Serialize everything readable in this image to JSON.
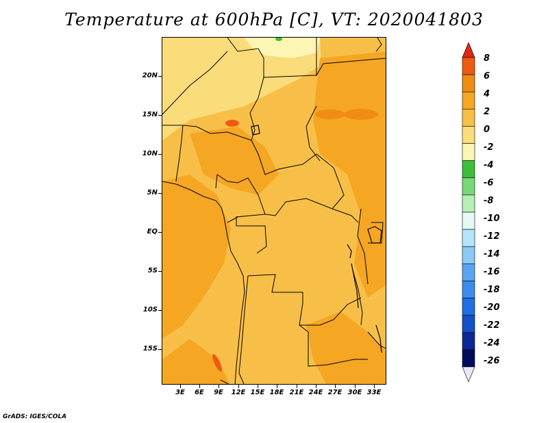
{
  "title": "Temperature at 600hPa [C], VT: 2020041803",
  "credit": "GrADS: IGES/COLA",
  "lat_labels": [
    "20N",
    "15N",
    "10N",
    "5N",
    "EQ",
    "5S",
    "10S",
    "15S"
  ],
  "lon_labels": [
    "3E",
    "6E",
    "9E",
    "12E",
    "15E",
    "18E",
    "21E",
    "24E",
    "27E",
    "30E",
    "33E"
  ],
  "colorbar": {
    "labels": [
      "8",
      "6",
      "4",
      "2",
      "0",
      "-2",
      "-4",
      "-6",
      "-8",
      "-10",
      "-12",
      "-14",
      "-16",
      "-18",
      "-20",
      "-22",
      "-24",
      "-26"
    ],
    "colors": [
      "#e02814",
      "#f05a0f",
      "#f08c14",
      "#f5a623",
      "#f8bf48",
      "#fadc7a",
      "#fdf5b4",
      "#3cbe3c",
      "#78d878",
      "#b4f0b4",
      "#e6faf5",
      "#b4e6fa",
      "#8cc8f5",
      "#5aa5f0",
      "#3c8cf0",
      "#1e6ee6",
      "#1450c8",
      "#0a2896",
      "#000a5a",
      "#e8e8f8"
    ]
  }
}
